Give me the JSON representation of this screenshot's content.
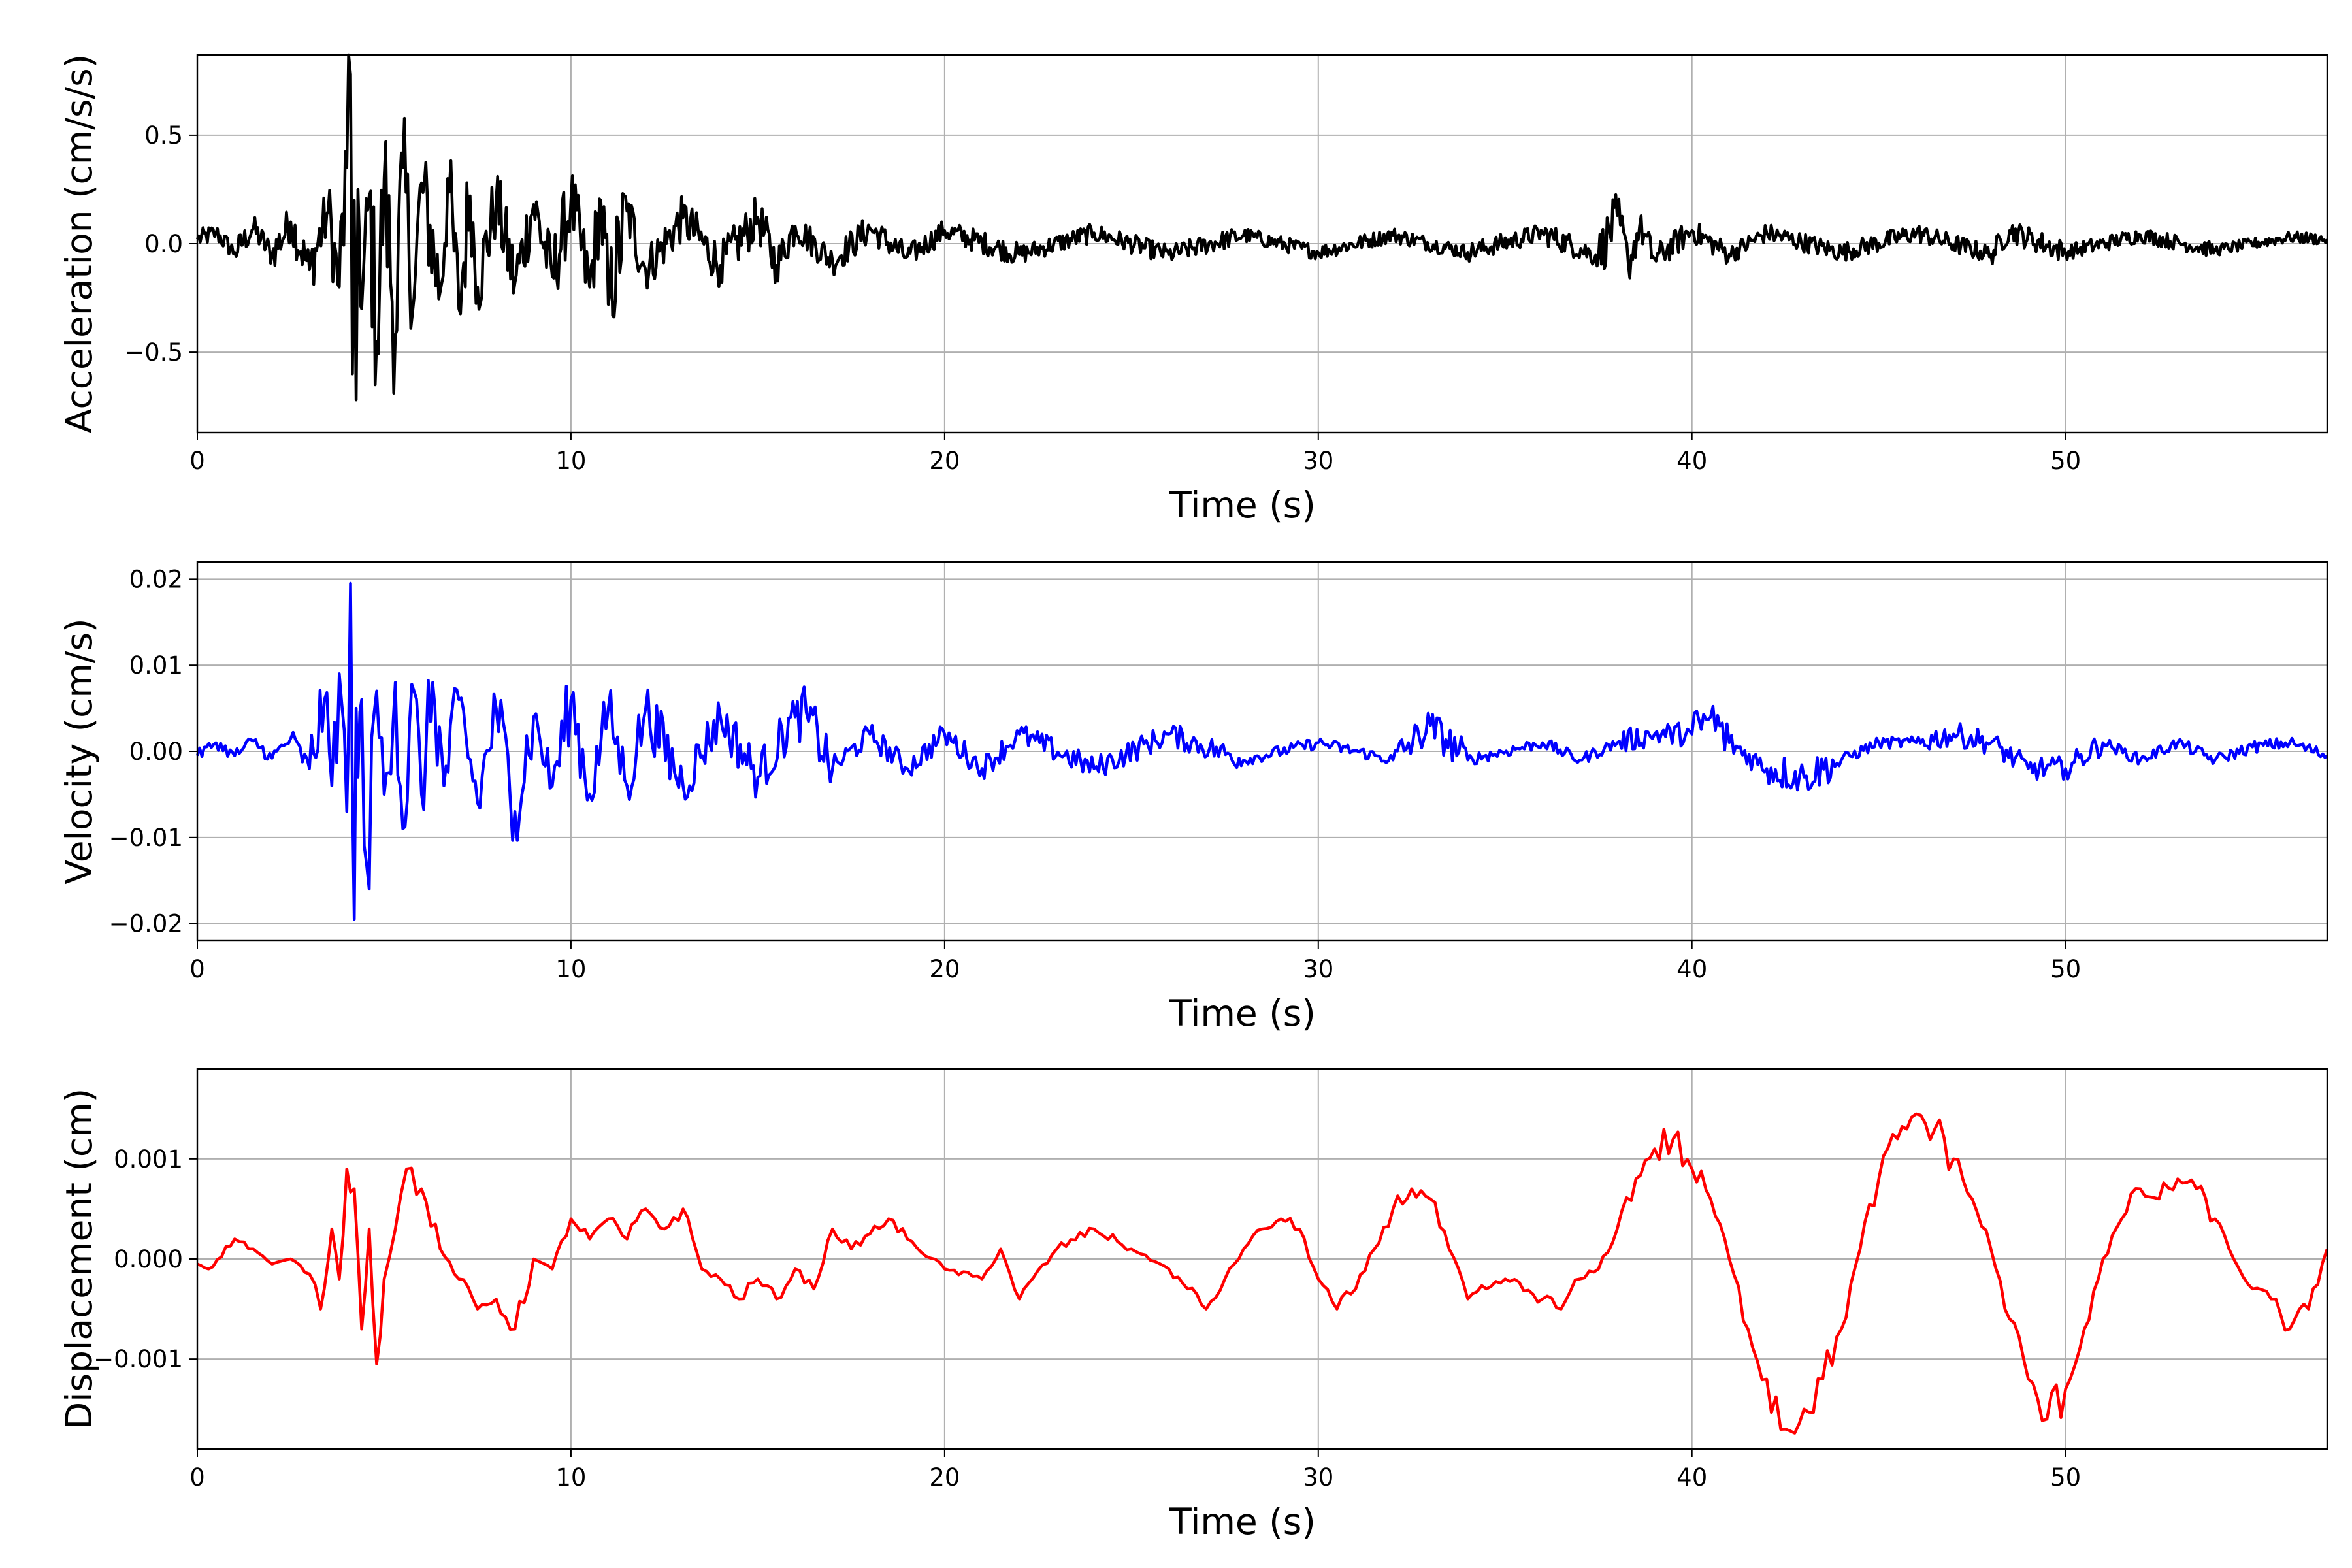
{
  "chart_data": [
    {
      "type": "line",
      "xlabel": "Time (s)",
      "ylabel": "Acceleration (cm/s/s)",
      "xlim": [
        0,
        57
      ],
      "ylim": [
        -0.87,
        0.87
      ],
      "xticks": [
        0,
        10,
        20,
        30,
        40,
        50
      ],
      "xtick_labels": [
        "0",
        "10",
        "20",
        "30",
        "40",
        "50"
      ],
      "yticks": [
        0.5,
        0.0,
        -0.5
      ],
      "ytick_labels": [
        "0.5",
        "0.0",
        "−0.5"
      ],
      "grid": true,
      "series": [
        {
          "color": "#000000",
          "x": [
            0,
            0.5,
            1,
            1.5,
            2,
            2.5,
            3,
            3.5,
            3.8,
            4.0,
            4.1,
            4.15,
            4.2,
            4.25,
            4.3,
            4.4,
            4.6,
            4.8,
            5.0,
            5.3,
            5.5,
            5.8,
            6.0,
            6.5,
            6.7,
            7.0,
            7.3,
            7.5,
            8.0,
            8.5,
            9.0,
            9.5,
            10.0,
            10.5,
            10.8,
            11.0,
            11.5,
            12,
            13,
            14,
            15,
            15.5,
            16,
            17,
            18,
            19,
            20,
            22,
            24,
            26,
            28,
            30,
            32,
            34,
            36,
            37.5,
            38.0,
            38.3,
            38.6,
            39,
            40,
            41,
            42,
            44,
            46,
            48,
            48.5,
            50,
            52,
            54,
            56,
            57
          ],
          "y": [
            0.02,
            0.05,
            -0.04,
            0.07,
            -0.05,
            0.1,
            -0.12,
            0.15,
            -0.2,
            0.35,
            0.78,
            -0.6,
            0.2,
            -0.72,
            0.25,
            -0.3,
            0.22,
            -0.45,
            0.3,
            -0.42,
            0.35,
            -0.25,
            0.28,
            -0.22,
            0.3,
            -0.3,
            0.22,
            -0.2,
            0.2,
            -0.18,
            0.18,
            -0.15,
            0.2,
            -0.2,
            0.2,
            -0.28,
            0.15,
            -0.12,
            0.12,
            -0.1,
            0.12,
            -0.1,
            0.08,
            -0.08,
            0.07,
            -0.06,
            0.06,
            -0.05,
            0.05,
            -0.05,
            0.04,
            -0.04,
            0.04,
            -0.04,
            0.05,
            -0.06,
            0.13,
            -0.1,
            0.08,
            -0.07,
            0.06,
            -0.05,
            0.05,
            -0.04,
            0.05,
            -0.05,
            0.06,
            -0.04,
            0.04,
            -0.03,
            0.03,
            0.02
          ]
        }
      ]
    },
    {
      "type": "line",
      "xlabel": "Time (s)",
      "ylabel": "Velocity (cm/s)",
      "xlim": [
        0,
        57
      ],
      "ylim": [
        -0.022,
        0.022
      ],
      "xticks": [
        0,
        10,
        20,
        30,
        40,
        50
      ],
      "xtick_labels": [
        "0",
        "10",
        "20",
        "30",
        "40",
        "50"
      ],
      "yticks": [
        0.02,
        0.01,
        0.0,
        -0.01,
        -0.02
      ],
      "ytick_labels": [
        "0.02",
        "0.01",
        "0.00",
        "−0.01",
        "−0.02"
      ],
      "grid": true,
      "series": [
        {
          "color": "#0000ff",
          "x": [
            0,
            0.5,
            1,
            1.5,
            2,
            2.5,
            3,
            3.4,
            3.6,
            3.8,
            4.0,
            4.1,
            4.15,
            4.2,
            4.25,
            4.3,
            4.4,
            4.6,
            4.8,
            5.0,
            5.3,
            5.5,
            5.8,
            6.0,
            6.3,
            6.6,
            7.0,
            7.5,
            8.0,
            8.5,
            9.0,
            9.5,
            10.0,
            10.5,
            11.0,
            11.5,
            12,
            13,
            14,
            15,
            16,
            16.3,
            17,
            18,
            19,
            20,
            21,
            22,
            24,
            26,
            28,
            30,
            32,
            33,
            34,
            36,
            37,
            38,
            39,
            40,
            40.5,
            41,
            42,
            43,
            44,
            45,
            46,
            47,
            48,
            49,
            50,
            51,
            52,
            53,
            54,
            55,
            56,
            57
          ],
          "y": [
            -0.0005,
            0.001,
            -0.0005,
            0.0012,
            -0.0008,
            0.0015,
            -0.002,
            0.006,
            -0.004,
            0.009,
            -0.007,
            0.0195,
            -0.005,
            -0.0195,
            0.005,
            -0.003,
            0.006,
            -0.016,
            0.007,
            -0.005,
            0.008,
            -0.009,
            0.007,
            -0.005,
            0.008,
            -0.004,
            0.006,
            -0.006,
            0.005,
            -0.007,
            0.004,
            -0.004,
            0.006,
            -0.005,
            0.005,
            -0.004,
            0.005,
            -0.004,
            0.004,
            -0.003,
            0.004,
            0.0045,
            -0.002,
            0.002,
            -0.002,
            0.002,
            -0.002,
            0.002,
            -0.002,
            0.002,
            -0.001,
            0.001,
            -0.001,
            0.003,
            -0.001,
            0.001,
            -0.001,
            0.001,
            0.002,
            0.002,
            0.004,
            0.001,
            -0.002,
            -0.003,
            -0.001,
            0.001,
            0.001,
            0.002,
            0.001,
            -0.002,
            -0.002,
            0.001,
            -0.001,
            0.001,
            -0.001,
            0.0005,
            0.001,
            -0.0005
          ]
        }
      ]
    },
    {
      "type": "line",
      "xlabel": "Time (s)",
      "ylabel": "Displacement (cm)",
      "xlim": [
        0,
        57
      ],
      "ylim": [
        -0.0019,
        0.0019
      ],
      "xticks": [
        0,
        10,
        20,
        30,
        40,
        50
      ],
      "xtick_labels": [
        "0",
        "10",
        "20",
        "30",
        "40",
        "50"
      ],
      "yticks": [
        0.001,
        0.0,
        -0.001
      ],
      "ytick_labels": [
        "0.001",
        "0.000",
        "−0.001"
      ],
      "grid": true,
      "series": [
        {
          "color": "#ff0000",
          "x": [
            0,
            0.3,
            1.0,
            1.5,
            2.0,
            2.5,
            3.0,
            3.3,
            3.6,
            3.8,
            4.0,
            4.2,
            4.4,
            4.6,
            4.8,
            5.0,
            5.3,
            5.6,
            6.0,
            6.5,
            7.0,
            7.5,
            8.0,
            8.5,
            9.0,
            9.5,
            10.0,
            10.5,
            11.0,
            11.5,
            12.0,
            12.5,
            13.0,
            13.5,
            14.0,
            14.5,
            15.0,
            15.5,
            16.0,
            16.5,
            17.0,
            17.5,
            18.0,
            18.5,
            19.0,
            20.0,
            21.0,
            21.5,
            22.0,
            23.0,
            24.0,
            25.0,
            26.0,
            26.5,
            27.0,
            27.5,
            28.0,
            28.5,
            29.0,
            29.5,
            30.0,
            30.5,
            31.0,
            31.5,
            32.0,
            32.5,
            33.0,
            33.5,
            34.0,
            34.5,
            35.0,
            36.0,
            36.5,
            37.0,
            37.5,
            38.0,
            38.5,
            39.0,
            39.5,
            40.0,
            40.5,
            41.0,
            41.5,
            42.0,
            42.5,
            43.0,
            43.5,
            44.0,
            44.5,
            45.0,
            45.5,
            46.0,
            46.5,
            47.0,
            47.5,
            48.0,
            48.5,
            49.0,
            49.5,
            50.0,
            50.5,
            51.0,
            51.5,
            52.0,
            52.5,
            53.0,
            53.5,
            54.0,
            54.5,
            55.0,
            55.5,
            56.0,
            56.5,
            57.0
          ],
          "y": [
            -5e-05,
            -0.0001,
            0.0002,
            0.0001,
            -5e-05,
            0.0,
            -0.00015,
            -0.0005,
            0.0003,
            -0.0002,
            0.0009,
            0.0007,
            -0.0007,
            0.0003,
            -0.00105,
            -0.0002,
            0.0003,
            0.0009,
            0.0007,
            0.0001,
            -0.0002,
            -0.0005,
            -0.0004,
            -0.0007,
            0.0,
            -0.0001,
            0.0004,
            0.0002,
            0.0004,
            0.0002,
            0.0005,
            0.0003,
            0.0005,
            -0.0001,
            -0.0002,
            -0.0004,
            -0.0002,
            -0.0004,
            -0.0001,
            -0.0003,
            0.0003,
            0.0001,
            0.00025,
            0.0004,
            0.0002,
            -0.0001,
            -0.0002,
            0.0001,
            -0.0004,
            0.0001,
            0.0003,
            0.0001,
            -0.0001,
            -0.0003,
            -0.0005,
            -0.0002,
            0.0001,
            0.0003,
            0.0004,
            0.0003,
            -0.0002,
            -0.0005,
            -0.0003,
            0.0001,
            0.0005,
            0.0007,
            0.0006,
            0.0001,
            -0.0004,
            -0.0003,
            -0.0002,
            -0.0004,
            -0.0005,
            -0.0002,
            -0.0001,
            0.0003,
            0.0008,
            0.0011,
            0.0012,
            0.0009,
            0.0006,
            0.0,
            -0.0007,
            -0.0012,
            -0.0017,
            -0.0015,
            -0.0012,
            -0.0007,
            0.0001,
            0.0008,
            0.0012,
            0.00145,
            0.0013,
            0.001,
            0.0006,
            0.0001,
            -0.0006,
            -0.0012,
            -0.0016,
            -0.0013,
            -0.0007,
            0.0,
            0.0004,
            0.0007,
            0.0006,
            0.0008,
            0.0007,
            0.0004,
            0.0,
            -0.0003,
            -0.0004,
            -0.0007,
            -0.0005,
            0.0001
          ]
        }
      ]
    }
  ]
}
